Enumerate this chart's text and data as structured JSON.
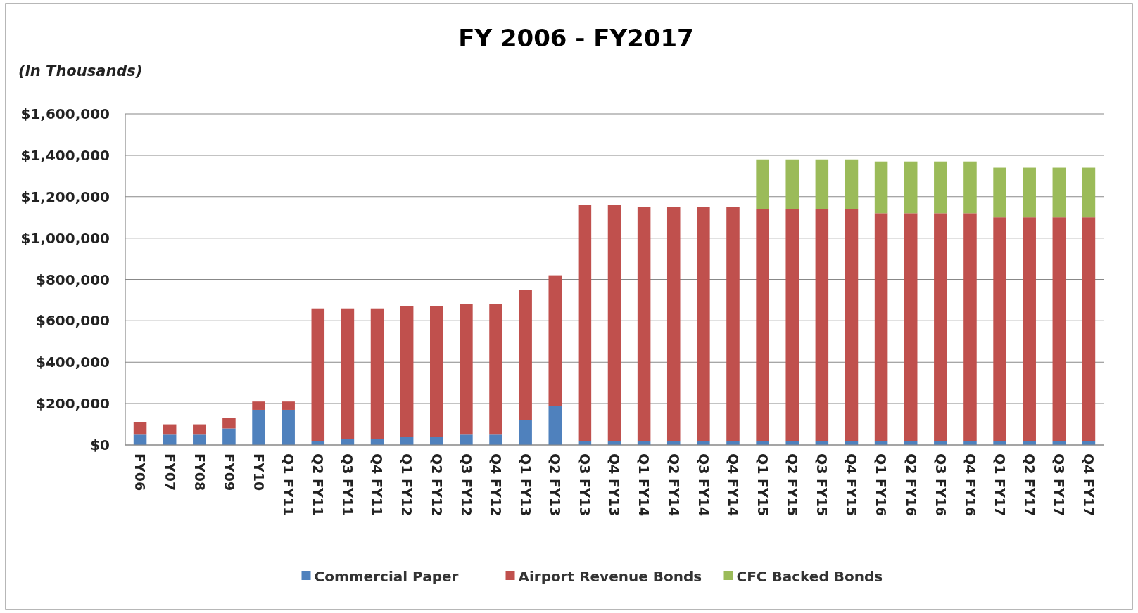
{
  "chart_data": {
    "type": "bar",
    "title": "FY 2006 - FY2017",
    "annotations": [
      "(in Thousands)"
    ],
    "stacked": true,
    "grid": "y",
    "legend": "bottom",
    "categories": [
      "FY06",
      "FY07",
      "FY08",
      "FY09",
      "FY10",
      "Q1 FY11",
      "Q2 FY11",
      "Q3 FY11",
      "Q4 FY11",
      "Q1 FY12",
      "Q2 FY12",
      "Q3 FY12",
      "Q4 FY12",
      "Q1 FY13",
      "Q2 FY13",
      "Q3 FY13",
      "Q4 FY13",
      "Q1 FY14",
      "Q2 FY14",
      "Q3 FY14",
      "Q4 FY14",
      "Q1 FY15",
      "Q2 FY15",
      "Q3 FY15",
      "Q4 FY15",
      "Q1 FY16",
      "Q2 FY16",
      "Q3 FY16",
      "Q4 FY16",
      "Q1 FY17",
      "Q2 FY17",
      "Q3 FY17",
      "Q4 FY17"
    ],
    "series": [
      {
        "name": "Commercial Paper",
        "color": "#4f81bd",
        "values": [
          50000,
          50000,
          50000,
          80000,
          170000,
          170000,
          20000,
          30000,
          30000,
          40000,
          40000,
          50000,
          50000,
          120000,
          190000,
          20000,
          20000,
          20000,
          20000,
          20000,
          20000,
          20000,
          20000,
          20000,
          20000,
          20000,
          20000,
          20000,
          20000,
          20000,
          20000,
          20000,
          20000
        ]
      },
      {
        "name": "Airport Revenue Bonds",
        "color": "#c0504d",
        "values": [
          60000,
          50000,
          50000,
          50000,
          40000,
          40000,
          640000,
          630000,
          630000,
          630000,
          630000,
          630000,
          630000,
          630000,
          630000,
          1140000,
          1140000,
          1130000,
          1130000,
          1130000,
          1130000,
          1120000,
          1120000,
          1120000,
          1120000,
          1100000,
          1100000,
          1100000,
          1100000,
          1080000,
          1080000,
          1080000,
          1080000
        ]
      },
      {
        "name": "CFC Backed Bonds",
        "color": "#9bbb59",
        "values": [
          null,
          null,
          null,
          null,
          null,
          null,
          null,
          null,
          null,
          null,
          null,
          null,
          null,
          null,
          null,
          null,
          null,
          null,
          null,
          null,
          null,
          240000,
          240000,
          240000,
          240000,
          250000,
          250000,
          250000,
          250000,
          240000,
          240000,
          240000,
          240000
        ]
      }
    ],
    "ylim": [
      0,
      1600000
    ],
    "yticks": [
      {
        "value": 0,
        "label": "$0"
      },
      {
        "value": 200000,
        "label": "$200,000"
      },
      {
        "value": 400000,
        "label": "$400,000"
      },
      {
        "value": 600000,
        "label": "$600,000"
      },
      {
        "value": 800000,
        "label": "$800,000"
      },
      {
        "value": 1000000,
        "label": "$1,000,000"
      },
      {
        "value": 1200000,
        "label": "$1,200,000"
      },
      {
        "value": 1400000,
        "label": "$1,400,000"
      },
      {
        "value": 1600000,
        "label": "$1,600,000"
      }
    ]
  }
}
